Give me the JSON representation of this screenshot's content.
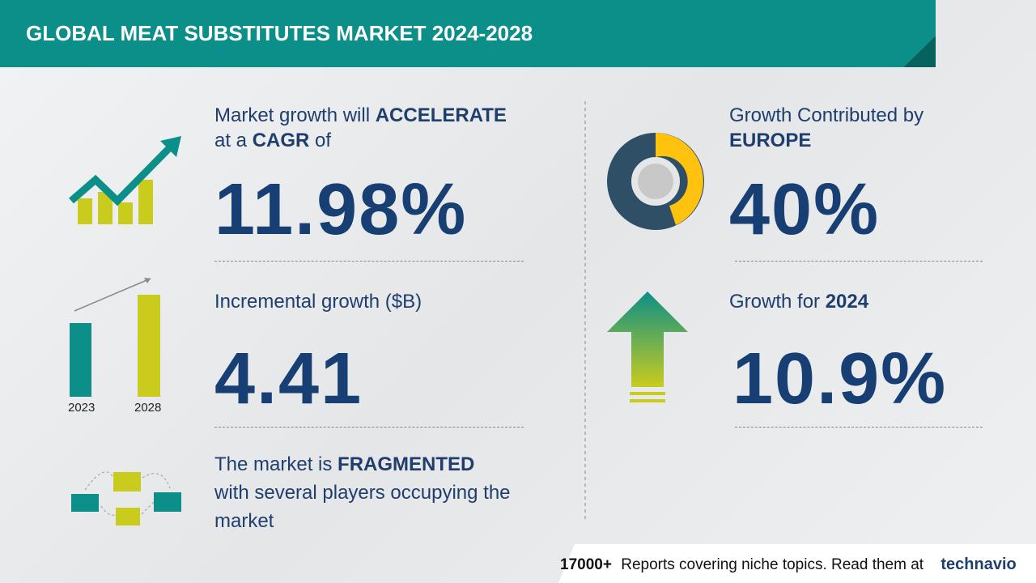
{
  "header": {
    "title": "GLOBAL MEAT SUBSTITUTES MARKET 2024-2028"
  },
  "cagr": {
    "text1": "Market growth will",
    "emph1": "ACCELERATE",
    "text2": "at a",
    "emph2": "CAGR",
    "text3": "of",
    "value": "11.98%"
  },
  "incremental": {
    "label": "Incremental growth ($B)",
    "value": "4.41",
    "bar_labels": [
      "2023",
      "2028"
    ]
  },
  "structure": {
    "text1": "The market is",
    "emph": "FRAGMENTED",
    "text2": "with several players occupying the market"
  },
  "region": {
    "label": "Growth Contributed by",
    "emph": "EUROPE",
    "value": "40%"
  },
  "yoy": {
    "label": "Growth for",
    "emph": "2024",
    "value": "10.9%"
  },
  "footer": {
    "count": "17000+",
    "text": "Reports covering niche topics. Read them at",
    "brand": "technavio"
  }
}
